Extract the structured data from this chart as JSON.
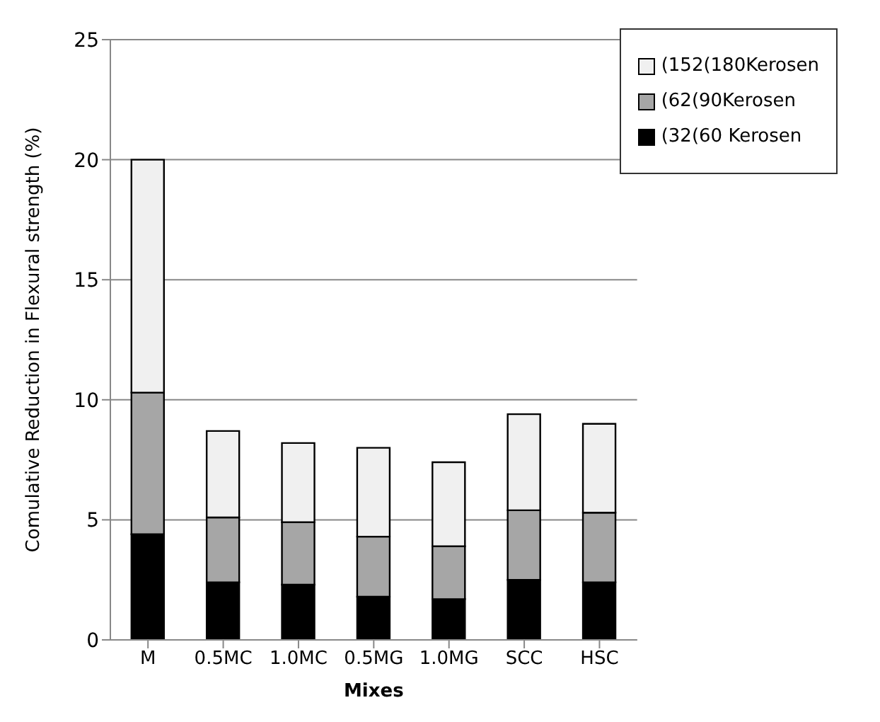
{
  "chart_data": {
    "type": "bar",
    "stacked": true,
    "xlabel": "Mixes",
    "ylabel": "Comulative Reduction in Flexural strength (%)",
    "categories": [
      "M",
      "0.5MC",
      "1.0MC",
      "0.5MG",
      "1.0MG",
      "SCC",
      "HSC"
    ],
    "series": [
      {
        "name": "(32(60 Kerosen",
        "color": "#000000",
        "values": [
          4.4,
          2.4,
          2.3,
          1.8,
          1.7,
          2.5,
          2.4
        ]
      },
      {
        "name": "(62(90Kerosen",
        "color": "#a6a6a6",
        "values": [
          5.9,
          2.7,
          2.6,
          2.5,
          2.2,
          2.9,
          2.9
        ]
      },
      {
        "name": "(152(180Kerosen",
        "color": "#f0f0f0",
        "values": [
          9.7,
          3.6,
          3.3,
          3.7,
          3.5,
          4.0,
          3.7
        ]
      }
    ],
    "ylim": [
      0,
      25
    ],
    "yticks": [
      0,
      5,
      10,
      15,
      20,
      25
    ],
    "grid": "y",
    "legend": "top right"
  }
}
